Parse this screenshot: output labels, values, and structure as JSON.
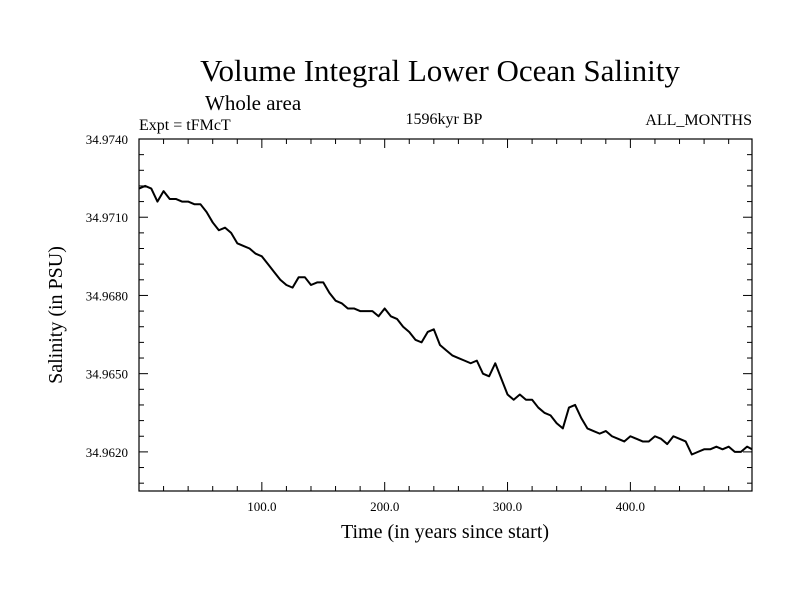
{
  "chart_data": {
    "type": "line",
    "title": "Volume Integral Lower Ocean Salinity",
    "subtitle": "Whole area",
    "header_left": "Expt = tFMcT",
    "header_center": "1596kyr BP",
    "header_right": "ALL_MONTHS",
    "xlabel": "Time (in years since start)",
    "ylabel": "Salinity (in PSU)",
    "xlim": [
      0,
      499
    ],
    "ylim": [
      34.9605,
      34.974
    ],
    "x_ticks": [
      100,
      200,
      300,
      400
    ],
    "x_tick_labels": [
      "100.0",
      "200.0",
      "300.0",
      "400.0"
    ],
    "y_ticks": [
      34.962,
      34.965,
      34.968,
      34.971,
      34.974
    ],
    "y_tick_labels": [
      "34.9620",
      "34.9650",
      "34.9680",
      "34.9710",
      "34.9740"
    ],
    "grid": false,
    "series": [
      {
        "name": "Salinity",
        "color": "#000000",
        "x": [
          0,
          5,
          10,
          15,
          20,
          25,
          30,
          35,
          40,
          45,
          50,
          55,
          60,
          65,
          70,
          75,
          80,
          85,
          90,
          95,
          100,
          105,
          110,
          115,
          120,
          125,
          130,
          135,
          140,
          145,
          150,
          155,
          160,
          165,
          170,
          175,
          180,
          185,
          190,
          195,
          200,
          205,
          210,
          215,
          220,
          225,
          230,
          235,
          240,
          245,
          250,
          255,
          260,
          265,
          270,
          275,
          280,
          285,
          290,
          295,
          300,
          305,
          310,
          315,
          320,
          325,
          330,
          335,
          340,
          345,
          350,
          355,
          360,
          365,
          370,
          375,
          380,
          385,
          390,
          395,
          400,
          405,
          410,
          415,
          420,
          425,
          430,
          435,
          440,
          445,
          450,
          455,
          460,
          465,
          470,
          475,
          480,
          485,
          490,
          495,
          499
        ],
        "values": [
          34.9721,
          34.9722,
          34.9721,
          34.9716,
          34.972,
          34.9717,
          34.9717,
          34.9716,
          34.9716,
          34.9715,
          34.9715,
          34.9712,
          34.9708,
          34.9705,
          34.9706,
          34.9704,
          34.97,
          34.9699,
          34.9698,
          34.9696,
          34.9695,
          34.9692,
          34.9689,
          34.9686,
          34.9684,
          34.9683,
          34.9687,
          34.9687,
          34.9684,
          34.9685,
          34.9685,
          34.9681,
          34.9678,
          34.9677,
          34.9675,
          34.9675,
          34.9674,
          34.9674,
          34.9674,
          34.9672,
          34.9675,
          34.9672,
          34.9671,
          34.9668,
          34.9666,
          34.9663,
          34.9662,
          34.9666,
          34.9667,
          34.9661,
          34.9659,
          34.9657,
          34.9656,
          34.9655,
          34.9654,
          34.9655,
          34.965,
          34.9649,
          34.9654,
          34.9648,
          34.9642,
          34.964,
          34.9642,
          34.964,
          34.964,
          34.9637,
          34.9635,
          34.9634,
          34.9631,
          34.9629,
          34.9637,
          34.9638,
          34.9633,
          34.9629,
          34.9628,
          34.9627,
          34.9628,
          34.9626,
          34.9625,
          34.9624,
          34.9626,
          34.9625,
          34.9624,
          34.9624,
          34.9626,
          34.9625,
          34.9623,
          34.9626,
          34.9625,
          34.9624,
          34.9619,
          34.962,
          34.9621,
          34.9621,
          34.9622,
          34.9621,
          34.9622,
          34.962,
          34.962,
          34.9622,
          34.9621
        ]
      }
    ]
  }
}
